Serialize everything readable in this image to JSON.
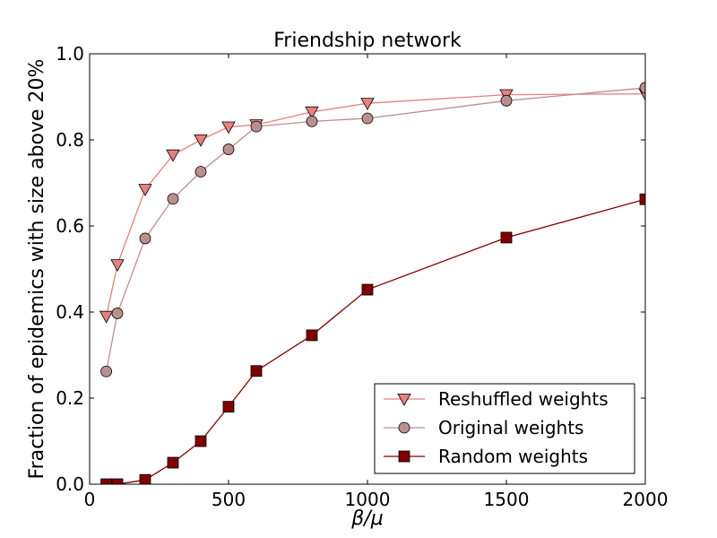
{
  "chart_data": {
    "type": "line",
    "title": "Friendship network",
    "xlabel": "β/μ",
    "ylabel": "Fraction of epidemics with size above 20%",
    "xlim": [
      0,
      2000
    ],
    "ylim": [
      0.0,
      1.0
    ],
    "xticks": [
      "0",
      "500",
      "1000",
      "1500",
      "2000"
    ],
    "yticks": [
      "0.0",
      "0.2",
      "0.4",
      "0.6",
      "0.8",
      "1.0"
    ],
    "grid": false,
    "legend_position": "lower-right",
    "series": [
      {
        "name": "Reshuffled weights",
        "marker": "triangle-down",
        "color": "#e88080",
        "x": [
          60,
          100,
          200,
          300,
          400,
          500,
          600,
          800,
          1000,
          1500,
          2000
        ],
        "y": [
          0.39,
          0.51,
          0.685,
          0.765,
          0.8,
          0.83,
          0.835,
          0.865,
          0.885,
          0.905,
          0.907
        ]
      },
      {
        "name": "Original weights",
        "marker": "circle",
        "color": "#bc8f8f",
        "x": [
          60,
          100,
          200,
          300,
          400,
          500,
          600,
          800,
          1000,
          1500,
          2000
        ],
        "y": [
          0.262,
          0.397,
          0.571,
          0.663,
          0.726,
          0.778,
          0.831,
          0.843,
          0.85,
          0.891,
          0.921
        ]
      },
      {
        "name": "Random weights",
        "marker": "square",
        "color": "#800000",
        "x": [
          60,
          100,
          200,
          300,
          400,
          500,
          600,
          800,
          1000,
          1500,
          2000
        ],
        "y": [
          0.0,
          0.0,
          0.01,
          0.05,
          0.1,
          0.18,
          0.263,
          0.346,
          0.452,
          0.573,
          0.662
        ]
      }
    ]
  }
}
